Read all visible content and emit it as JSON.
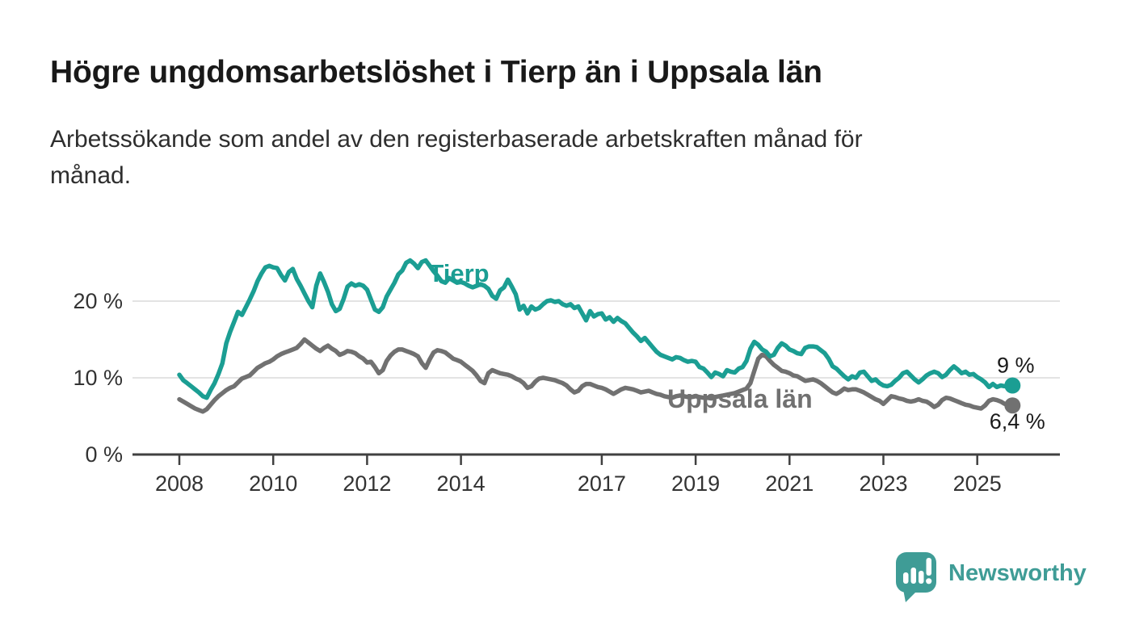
{
  "header": {
    "title": "Högre ungdomsarbetslöshet i Tierp än i Uppsala län",
    "subtitle_line1": "Arbetssökande som andel av den registerbaserade arbetskraften månad för",
    "subtitle_line2": "månad."
  },
  "chart_data": {
    "type": "line",
    "frequency": "monthly",
    "x_start": "2008-01",
    "x_end": "2025-10",
    "ylim": [
      0,
      27
    ],
    "grid": "horizontal",
    "legend_position": "inline-labels",
    "y_axis": {
      "ticks": [
        {
          "value": 0,
          "label": "0 %"
        },
        {
          "value": 10,
          "label": "10 %"
        },
        {
          "value": 20,
          "label": "20 %"
        }
      ]
    },
    "x_axis": {
      "ticks": [
        {
          "value": 2008,
          "label": "2008"
        },
        {
          "value": 2010,
          "label": "2010"
        },
        {
          "value": 2012,
          "label": "2012"
        },
        {
          "value": 2014,
          "label": "2014"
        },
        {
          "value": 2017,
          "label": "2017"
        },
        {
          "value": 2019,
          "label": "2019"
        },
        {
          "value": 2021,
          "label": "2021"
        },
        {
          "value": 2023,
          "label": "2023"
        },
        {
          "value": 2025,
          "label": "2025"
        }
      ]
    },
    "series": [
      {
        "name": "Tierp",
        "color": "#1b9e93",
        "end_label": "9 %",
        "end_value": 9.0,
        "values": [
          10.4,
          9.7,
          9.3,
          8.9,
          8.5,
          8.1,
          7.6,
          7.4,
          8.4,
          9.3,
          10.5,
          11.9,
          14.5,
          16.0,
          17.3,
          18.6,
          18.2,
          19.2,
          20.2,
          21.3,
          22.6,
          23.6,
          24.4,
          24.6,
          24.4,
          24.3,
          23.4,
          22.7,
          23.8,
          24.2,
          22.9,
          22.0,
          21.0,
          20.0,
          19.2,
          22.0,
          23.6,
          22.5,
          21.2,
          19.6,
          18.7,
          19.0,
          20.3,
          21.9,
          22.3,
          22.0,
          22.2,
          22.0,
          21.5,
          20.2,
          18.9,
          18.6,
          19.2,
          20.6,
          21.5,
          22.4,
          23.5,
          24.0,
          25.0,
          25.3,
          24.9,
          24.3,
          25.1,
          25.3,
          24.6,
          23.9,
          23.3,
          22.6,
          22.4,
          23.0,
          22.7,
          22.4,
          22.5,
          22.3,
          22.0,
          21.8,
          22.0,
          22.2,
          22.0,
          21.6,
          20.7,
          20.3,
          21.4,
          21.8,
          22.8,
          21.9,
          20.9,
          18.9,
          19.4,
          18.4,
          19.3,
          18.9,
          19.1,
          19.6,
          20.0,
          20.1,
          19.9,
          20.0,
          19.6,
          19.4,
          19.6,
          19.1,
          19.3,
          18.4,
          17.5,
          18.7,
          18.0,
          18.3,
          18.4,
          17.6,
          17.9,
          17.3,
          17.8,
          17.4,
          17.1,
          16.5,
          15.9,
          15.4,
          14.8,
          15.2,
          14.6,
          14.0,
          13.4,
          13.0,
          12.8,
          12.6,
          12.4,
          12.7,
          12.6,
          12.3,
          12.1,
          12.2,
          12.1,
          11.4,
          11.2,
          10.7,
          10.1,
          10.7,
          10.5,
          10.2,
          11.0,
          10.8,
          10.7,
          11.2,
          11.4,
          12.2,
          13.8,
          14.7,
          14.3,
          13.7,
          13.4,
          12.8,
          13.0,
          13.9,
          14.5,
          14.2,
          13.7,
          13.5,
          13.2,
          13.1,
          13.9,
          14.1,
          14.1,
          14.0,
          13.6,
          13.2,
          12.5,
          11.5,
          11.2,
          10.7,
          10.2,
          9.8,
          10.2,
          10.0,
          10.7,
          10.8,
          10.2,
          9.6,
          9.8,
          9.3,
          9.0,
          8.9,
          9.1,
          9.6,
          10.0,
          10.6,
          10.8,
          10.3,
          9.8,
          9.4,
          9.8,
          10.3,
          10.6,
          10.8,
          10.6,
          10.1,
          10.4,
          11.0,
          11.5,
          11.1,
          10.6,
          10.8,
          10.4,
          10.5,
          10.1,
          9.8,
          9.4,
          8.8,
          9.2,
          8.8,
          9.0,
          8.9,
          9.1,
          9.0
        ]
      },
      {
        "name": "Uppsala län",
        "color": "#717171",
        "end_label": "6,4 %",
        "end_value": 6.4,
        "values": [
          7.2,
          6.9,
          6.6,
          6.3,
          6.0,
          5.8,
          5.6,
          5.9,
          6.5,
          7.1,
          7.6,
          8.0,
          8.4,
          8.7,
          8.9,
          9.4,
          9.9,
          10.1,
          10.3,
          10.8,
          11.3,
          11.6,
          11.9,
          12.1,
          12.4,
          12.8,
          13.1,
          13.3,
          13.5,
          13.7,
          13.9,
          14.4,
          15.0,
          14.6,
          14.2,
          13.8,
          13.5,
          13.9,
          14.2,
          13.8,
          13.5,
          13.0,
          13.2,
          13.5,
          13.4,
          13.2,
          12.8,
          12.5,
          12.0,
          12.1,
          11.4,
          10.6,
          11.0,
          12.2,
          12.9,
          13.4,
          13.7,
          13.7,
          13.5,
          13.3,
          13.1,
          12.8,
          11.9,
          11.3,
          12.4,
          13.3,
          13.6,
          13.5,
          13.3,
          12.9,
          12.5,
          12.3,
          12.1,
          11.7,
          11.3,
          10.9,
          10.3,
          9.6,
          9.3,
          10.6,
          11.0,
          10.8,
          10.6,
          10.5,
          10.4,
          10.2,
          9.9,
          9.7,
          9.3,
          8.7,
          8.9,
          9.5,
          9.9,
          10.0,
          9.9,
          9.8,
          9.7,
          9.5,
          9.3,
          9.0,
          8.5,
          8.1,
          8.3,
          8.9,
          9.2,
          9.2,
          9.0,
          8.8,
          8.7,
          8.5,
          8.2,
          7.9,
          8.2,
          8.5,
          8.7,
          8.6,
          8.5,
          8.3,
          8.1,
          8.2,
          8.3,
          8.1,
          7.9,
          7.8,
          7.6,
          7.5,
          7.4,
          7.6,
          7.7,
          7.6,
          7.5,
          7.5,
          7.6,
          7.5,
          7.4,
          7.4,
          7.3,
          7.5,
          7.6,
          7.7,
          7.8,
          7.9,
          8.0,
          8.2,
          8.4,
          8.6,
          9.3,
          10.9,
          12.5,
          13.0,
          12.8,
          12.2,
          11.7,
          11.3,
          10.9,
          10.8,
          10.6,
          10.3,
          10.2,
          9.9,
          9.6,
          9.7,
          9.8,
          9.6,
          9.3,
          8.9,
          8.5,
          8.1,
          7.9,
          8.2,
          8.6,
          8.4,
          8.5,
          8.5,
          8.3,
          8.1,
          7.8,
          7.5,
          7.2,
          7.0,
          6.6,
          7.1,
          7.6,
          7.5,
          7.3,
          7.2,
          7.0,
          6.9,
          7.0,
          7.2,
          7.0,
          6.9,
          6.6,
          6.2,
          6.5,
          7.1,
          7.4,
          7.3,
          7.1,
          6.9,
          6.7,
          6.5,
          6.4,
          6.2,
          6.1,
          6.0,
          6.4,
          7.0,
          7.2,
          7.1,
          6.9,
          6.6,
          6.7,
          6.4
        ]
      }
    ]
  },
  "footer": {
    "brand": "Newsworthy",
    "brand_color": "#3f9c96"
  }
}
